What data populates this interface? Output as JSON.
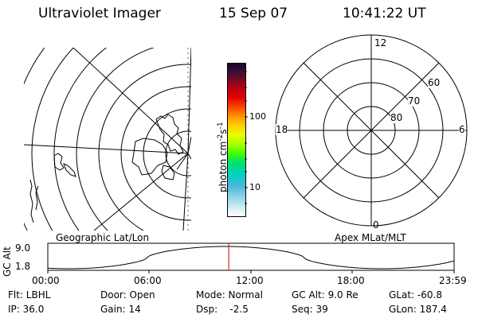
{
  "header": {
    "instrument": "Ultraviolet Imager",
    "date": "15 Sep 07",
    "time": "10:41:22 UT"
  },
  "left_panel": {
    "caption": "Geographic Lat/Lon"
  },
  "right_panel": {
    "caption": "Apex MLat/MLT",
    "mlt_labels": {
      "top": "12",
      "bottom": "0",
      "left": "18",
      "right": "6"
    },
    "mlat_labels": [
      "60",
      "70",
      "80"
    ]
  },
  "colorbar": {
    "unit": "photon cm",
    "exp1": "-2",
    "s": "s",
    "exp2": "-1",
    "tick_labels": [
      "100",
      "10"
    ],
    "tick_values": [
      100,
      10
    ]
  },
  "altitude_plot": {
    "ylabel": "GC Alt",
    "y_ticks": [
      "9.0",
      "1.8"
    ],
    "x_ticks": [
      "00:00",
      "06:00",
      "12:00",
      "18:00",
      "23:59"
    ],
    "current_time_hours": 10.69
  },
  "status": {
    "flt": "Flt: LBHL",
    "ip": "IP: 36.0",
    "door": "Door: Open",
    "gain": "Gain: 14",
    "mode": "Mode: Normal",
    "dsp": "Dsp:    -2.5",
    "gc_alt": "GC Alt: 9.0 Re",
    "seq": "Seq: 39",
    "glat": "GLat: -60.8",
    "glon": "GLon: 187.4"
  },
  "colors": {
    "accent_marker": "#d00000",
    "line": "#000000",
    "background": "#ffffff"
  }
}
